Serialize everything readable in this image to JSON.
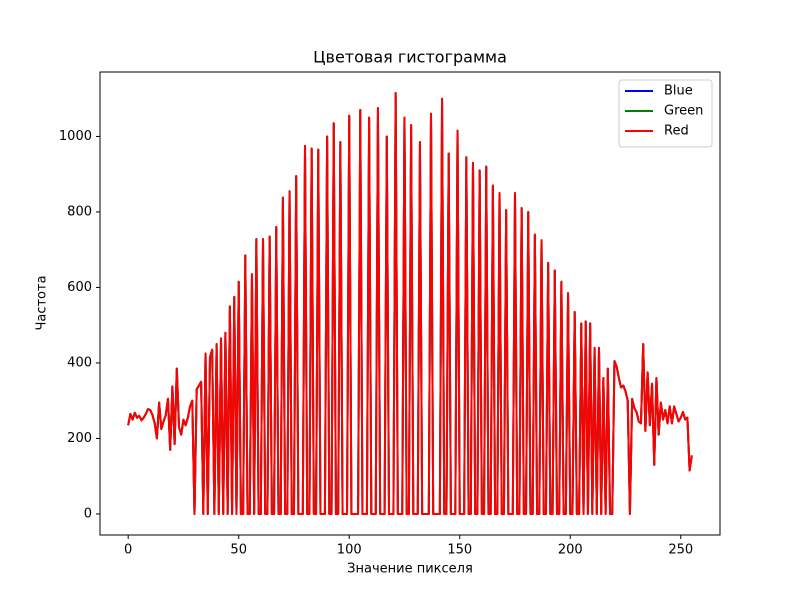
{
  "chart_data": {
    "type": "line",
    "title": "Цветовая гистограмма",
    "xlabel": "Значение пикселя",
    "ylabel": "Частота",
    "x": [
      0,
      1,
      2,
      3,
      4,
      5,
      6,
      7,
      8,
      9,
      10,
      11,
      12,
      13,
      14,
      15,
      16,
      17,
      18,
      19,
      20,
      21,
      22,
      23,
      24,
      25,
      26,
      27,
      28,
      29,
      30,
      31,
      32,
      33,
      34,
      35,
      36,
      37,
      38,
      39,
      40,
      41,
      42,
      43,
      44,
      45,
      46,
      47,
      48,
      49,
      50,
      51,
      52,
      53,
      54,
      55,
      56,
      57,
      58,
      59,
      60,
      61,
      62,
      63,
      64,
      65,
      66,
      67,
      68,
      69,
      70,
      71,
      72,
      73,
      74,
      75,
      76,
      77,
      78,
      79,
      80,
      81,
      82,
      83,
      84,
      85,
      86,
      87,
      88,
      89,
      90,
      91,
      92,
      93,
      94,
      95,
      96,
      97,
      98,
      99,
      100,
      101,
      102,
      103,
      104,
      105,
      106,
      107,
      108,
      109,
      110,
      111,
      112,
      113,
      114,
      115,
      116,
      117,
      118,
      119,
      120,
      121,
      122,
      123,
      124,
      125,
      126,
      127,
      128,
      129,
      130,
      131,
      132,
      133,
      134,
      135,
      136,
      137,
      138,
      139,
      140,
      141,
      142,
      143,
      144,
      145,
      146,
      147,
      148,
      149,
      150,
      151,
      152,
      153,
      154,
      155,
      156,
      157,
      158,
      159,
      160,
      161,
      162,
      163,
      164,
      165,
      166,
      167,
      168,
      169,
      170,
      171,
      172,
      173,
      174,
      175,
      176,
      177,
      178,
      179,
      180,
      181,
      182,
      183,
      184,
      185,
      186,
      187,
      188,
      189,
      190,
      191,
      192,
      193,
      194,
      195,
      196,
      197,
      198,
      199,
      200,
      201,
      202,
      203,
      204,
      205,
      206,
      207,
      208,
      209,
      210,
      211,
      212,
      213,
      214,
      215,
      216,
      217,
      218,
      219,
      220,
      221,
      222,
      223,
      224,
      225,
      226,
      227,
      228,
      229,
      230,
      231,
      232,
      233,
      234,
      235,
      236,
      237,
      238,
      239,
      240,
      241,
      242,
      243,
      244,
      245,
      246,
      247,
      248,
      249,
      250,
      251,
      252,
      253,
      254,
      255
    ],
    "series": [
      {
        "name": "Blue",
        "color": "#0000ff",
        "values": [
          235,
          265,
          250,
          268,
          255,
          260,
          248,
          255,
          265,
          278,
          275,
          262,
          240,
          200,
          295,
          225,
          245,
          262,
          305,
          170,
          338,
          185,
          385,
          230,
          210,
          250,
          235,
          255,
          285,
          300,
          0,
          330,
          340,
          350,
          0,
          425,
          0,
          415,
          435,
          0,
          450,
          0,
          465,
          0,
          480,
          0,
          550,
          0,
          575,
          0,
          615,
          0,
          0,
          685,
          0,
          0,
          635,
          0,
          728,
          0,
          0,
          728,
          0,
          0,
          735,
          0,
          0,
          760,
          0,
          0,
          838,
          0,
          0,
          855,
          0,
          0,
          895,
          0,
          0,
          0,
          975,
          0,
          0,
          968,
          0,
          0,
          965,
          0,
          0,
          0,
          1000,
          0,
          0,
          1035,
          0,
          0,
          985,
          0,
          0,
          0,
          1055,
          0,
          0,
          0,
          0,
          1070,
          0,
          0,
          0,
          1050,
          0,
          0,
          0,
          1075,
          0,
          0,
          0,
          1000,
          0,
          0,
          0,
          1115,
          0,
          0,
          0,
          1050,
          0,
          0,
          1030,
          0,
          0,
          0,
          985,
          0,
          0,
          0,
          0,
          1060,
          0,
          0,
          0,
          0,
          1100,
          0,
          0,
          955,
          0,
          0,
          0,
          1015,
          0,
          0,
          0,
          945,
          0,
          0,
          930,
          0,
          0,
          910,
          0,
          0,
          920,
          0,
          0,
          870,
          0,
          0,
          850,
          0,
          0,
          805,
          0,
          0,
          0,
          850,
          0,
          0,
          810,
          0,
          0,
          800,
          0,
          0,
          740,
          0,
          0,
          725,
          0,
          0,
          665,
          0,
          0,
          645,
          0,
          0,
          615,
          0,
          0,
          585,
          0,
          0,
          535,
          0,
          0,
          505,
          0,
          510,
          0,
          505,
          0,
          440,
          0,
          440,
          0,
          360,
          0,
          385,
          0,
          0,
          405,
          390,
          360,
          335,
          340,
          325,
          300,
          0,
          305,
          280,
          270,
          245,
          240,
          450,
          220,
          375,
          235,
          345,
          130,
          360,
          210,
          295,
          250,
          275,
          240,
          285,
          240,
          285,
          265,
          245,
          255,
          270,
          250,
          255,
          115,
          155
        ]
      },
      {
        "name": "Green",
        "color": "#008000",
        "values": [
          235,
          265,
          250,
          268,
          255,
          260,
          248,
          255,
          265,
          278,
          275,
          262,
          240,
          200,
          295,
          225,
          245,
          262,
          305,
          170,
          338,
          185,
          385,
          230,
          210,
          250,
          235,
          255,
          285,
          300,
          0,
          330,
          340,
          350,
          0,
          425,
          0,
          415,
          435,
          0,
          450,
          0,
          465,
          0,
          480,
          0,
          550,
          0,
          575,
          0,
          615,
          0,
          0,
          685,
          0,
          0,
          635,
          0,
          728,
          0,
          0,
          728,
          0,
          0,
          735,
          0,
          0,
          760,
          0,
          0,
          838,
          0,
          0,
          855,
          0,
          0,
          895,
          0,
          0,
          0,
          975,
          0,
          0,
          968,
          0,
          0,
          965,
          0,
          0,
          0,
          1000,
          0,
          0,
          1035,
          0,
          0,
          985,
          0,
          0,
          0,
          1055,
          0,
          0,
          0,
          0,
          1070,
          0,
          0,
          0,
          1050,
          0,
          0,
          0,
          1075,
          0,
          0,
          0,
          1000,
          0,
          0,
          0,
          1115,
          0,
          0,
          0,
          1050,
          0,
          0,
          1030,
          0,
          0,
          0,
          985,
          0,
          0,
          0,
          0,
          1060,
          0,
          0,
          0,
          0,
          1100,
          0,
          0,
          955,
          0,
          0,
          0,
          1015,
          0,
          0,
          0,
          945,
          0,
          0,
          930,
          0,
          0,
          910,
          0,
          0,
          920,
          0,
          0,
          870,
          0,
          0,
          850,
          0,
          0,
          805,
          0,
          0,
          0,
          850,
          0,
          0,
          810,
          0,
          0,
          800,
          0,
          0,
          740,
          0,
          0,
          725,
          0,
          0,
          665,
          0,
          0,
          645,
          0,
          0,
          615,
          0,
          0,
          585,
          0,
          0,
          535,
          0,
          0,
          505,
          0,
          510,
          0,
          505,
          0,
          440,
          0,
          440,
          0,
          360,
          0,
          385,
          0,
          0,
          405,
          390,
          360,
          335,
          340,
          325,
          300,
          0,
          305,
          280,
          270,
          245,
          240,
          450,
          220,
          375,
          235,
          345,
          130,
          360,
          210,
          295,
          250,
          275,
          240,
          285,
          240,
          285,
          265,
          245,
          255,
          270,
          250,
          255,
          115,
          155
        ]
      },
      {
        "name": "Red",
        "color": "#ff0000",
        "values": [
          235,
          265,
          250,
          268,
          255,
          260,
          248,
          255,
          265,
          278,
          275,
          262,
          240,
          200,
          295,
          225,
          245,
          262,
          305,
          170,
          338,
          185,
          385,
          230,
          210,
          250,
          235,
          255,
          285,
          300,
          0,
          330,
          340,
          350,
          0,
          425,
          0,
          415,
          435,
          0,
          450,
          0,
          465,
          0,
          480,
          0,
          550,
          0,
          575,
          0,
          615,
          0,
          0,
          685,
          0,
          0,
          635,
          0,
          728,
          0,
          0,
          728,
          0,
          0,
          735,
          0,
          0,
          760,
          0,
          0,
          838,
          0,
          0,
          855,
          0,
          0,
          895,
          0,
          0,
          0,
          975,
          0,
          0,
          968,
          0,
          0,
          965,
          0,
          0,
          0,
          1000,
          0,
          0,
          1035,
          0,
          0,
          985,
          0,
          0,
          0,
          1055,
          0,
          0,
          0,
          0,
          1070,
          0,
          0,
          0,
          1050,
          0,
          0,
          0,
          1075,
          0,
          0,
          0,
          1000,
          0,
          0,
          0,
          1115,
          0,
          0,
          0,
          1050,
          0,
          0,
          1030,
          0,
          0,
          0,
          985,
          0,
          0,
          0,
          0,
          1060,
          0,
          0,
          0,
          0,
          1100,
          0,
          0,
          955,
          0,
          0,
          0,
          1015,
          0,
          0,
          0,
          945,
          0,
          0,
          930,
          0,
          0,
          910,
          0,
          0,
          920,
          0,
          0,
          870,
          0,
          0,
          850,
          0,
          0,
          805,
          0,
          0,
          0,
          850,
          0,
          0,
          810,
          0,
          0,
          800,
          0,
          0,
          740,
          0,
          0,
          725,
          0,
          0,
          665,
          0,
          0,
          645,
          0,
          0,
          615,
          0,
          0,
          585,
          0,
          0,
          535,
          0,
          0,
          505,
          0,
          510,
          0,
          505,
          0,
          440,
          0,
          440,
          0,
          360,
          0,
          385,
          0,
          0,
          405,
          390,
          360,
          335,
          340,
          325,
          300,
          0,
          305,
          280,
          270,
          245,
          240,
          450,
          220,
          375,
          235,
          345,
          130,
          360,
          210,
          295,
          250,
          275,
          240,
          285,
          240,
          285,
          265,
          245,
          255,
          270,
          250,
          255,
          115,
          155
        ]
      }
    ],
    "xlim": [
      -12.75,
      267.75
    ],
    "xticks": [
      0,
      50,
      100,
      150,
      200,
      250
    ],
    "ylim": [
      -55.75,
      1170.75
    ],
    "yticks": [
      0,
      200,
      400,
      600,
      800,
      1000
    ],
    "grid": false,
    "legend": "upper right"
  }
}
